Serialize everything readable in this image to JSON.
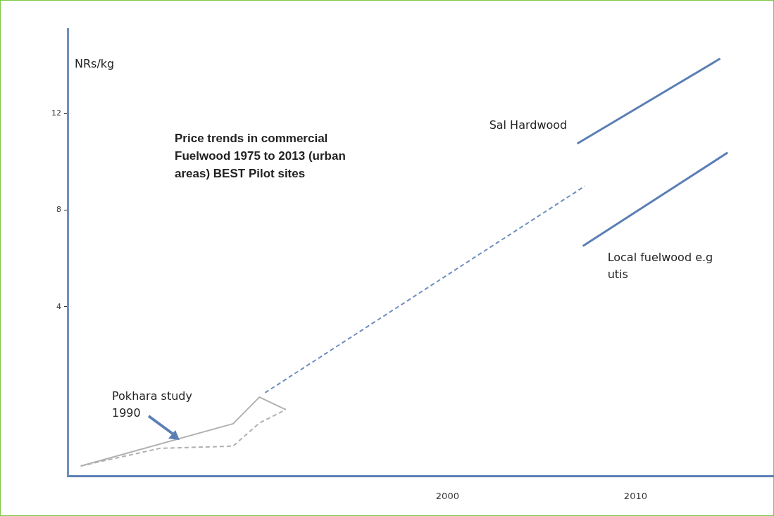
{
  "chart_data": {
    "type": "line",
    "title": "Price trends  in commercial Fuelwood 1975 to 2013 (urban areas) BEST Pilot sites",
    "ylabel": "NRs/kg",
    "annotations": [
      "Pokhara study 1990"
    ],
    "xlim": [
      1979.8,
      2017.4
    ],
    "xticks": [
      2000,
      2010
    ],
    "ylim": [
      -3,
      15.5
    ],
    "yticks": [
      4,
      8,
      12
    ],
    "grid": false,
    "legend": false,
    "marker": "none",
    "series": [
      {
        "color": "#b0b0b0",
        "line_style": "solid",
        "x": [
          1980.5,
          1988.6,
          1990.0,
          1991.4
        ],
        "values": [
          -2.59,
          -0.84,
          0.26,
          -0.26
        ]
      },
      {
        "color": "#b0b0b0",
        "line_style": "dashed",
        "x": [
          1980.5,
          1984.7,
          1988.6,
          1990.0,
          1991.4
        ],
        "values": [
          -2.59,
          -1.86,
          -1.77,
          -0.81,
          -0.26
        ]
      },
      {
        "color": "#6f8fbf",
        "line_style": "dashed",
        "x": [
          1990.3,
          2007.3
        ],
        "values": [
          0.44,
          8.99
        ]
      },
      {
        "name": "Sal Hardwood",
        "color": "#5b7fb5",
        "line_style": "solid",
        "x": [
          2006.9,
          2014.5
        ],
        "values": [
          10.75,
          14.27
        ]
      },
      {
        "name": "Local fuelwood e.g utis",
        "color": "#5b7fb5",
        "line_style": "solid",
        "x": [
          2007.2,
          2014.9
        ],
        "values": [
          6.51,
          10.38
        ]
      }
    ]
  }
}
